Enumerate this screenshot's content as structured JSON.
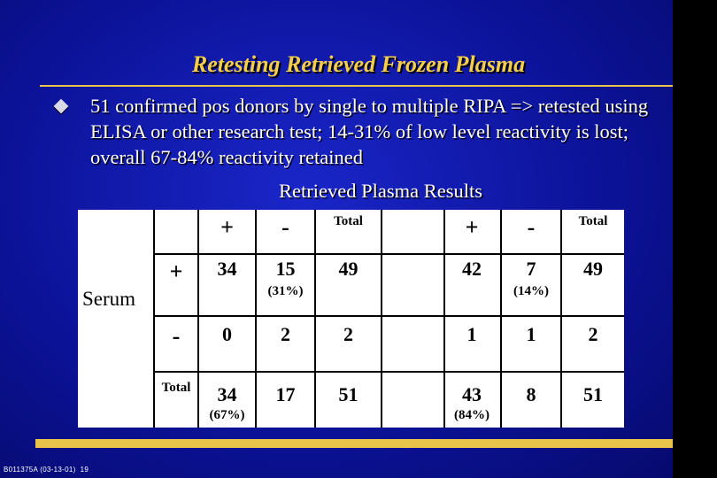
{
  "title": "Retesting Retrieved Frozen Plasma",
  "bullet": "51 confirmed pos donors by single to multiple RIPA => retested using ELISA or other research test; 14-31% of low level reactivity is lost; overall 67-84% reactivity retained",
  "table_heading": "Retrieved Plasma Results",
  "row_group_label": "Serum",
  "headers": [
    "+",
    "-",
    "Total",
    "+",
    "-",
    "Total"
  ],
  "row_labels": [
    "+",
    "-",
    "Total"
  ],
  "rows": [
    [
      "34",
      "15",
      "49",
      "42",
      "7",
      "49"
    ],
    [
      "0",
      "2",
      "2",
      "1",
      "1",
      "2"
    ],
    [
      "34",
      "17",
      "51",
      "43",
      "8",
      "51"
    ]
  ],
  "percentages": {
    "row1_left_minus": "(31%)",
    "row1_right_minus": "(14%)",
    "total_left_plus": "(67%)",
    "total_right_plus": "(84%)"
  },
  "footer": "B011375A (03-13-01)  19",
  "colors": {
    "background": "#0c139a",
    "title": "#f5ce4a",
    "accent_bar": "#e8c44a",
    "text": "#ffffff"
  }
}
